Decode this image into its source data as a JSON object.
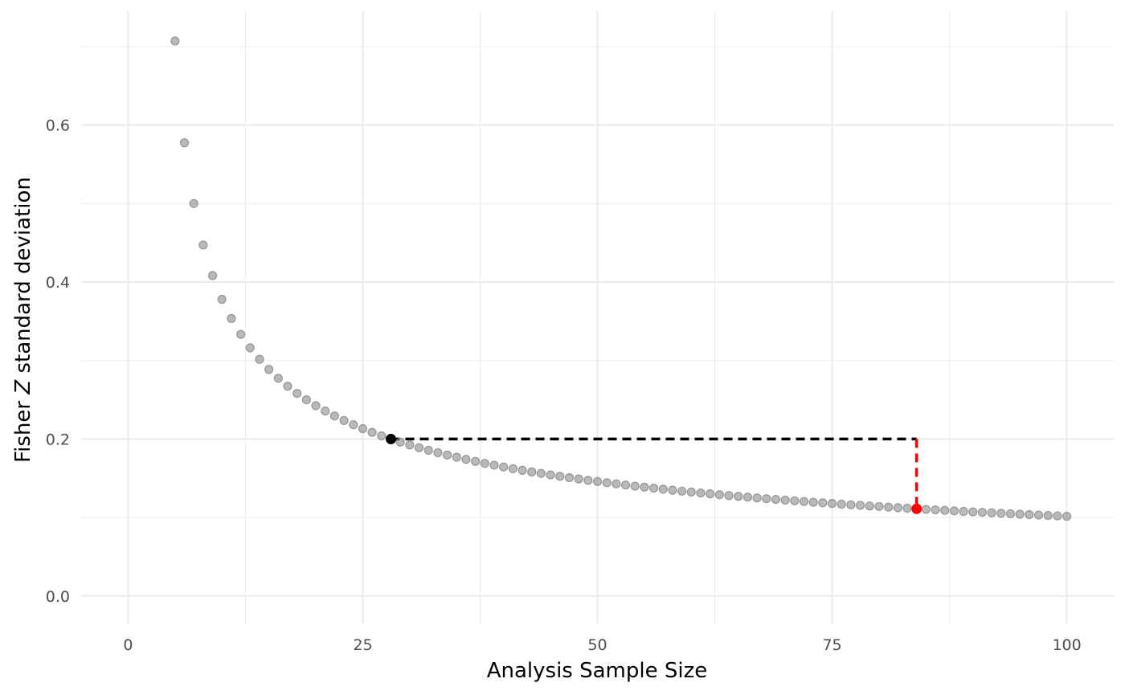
{
  "chart_data": {
    "type": "scatter",
    "title": "",
    "xlabel": "Analysis Sample Size",
    "ylabel_prefix": "Fisher ",
    "ylabel_var": "Z",
    "ylabel_suffix": " standard deviation",
    "xlim": [
      -5,
      105
    ],
    "ylim": [
      -0.035,
      0.745
    ],
    "x_ticks": [
      0,
      25,
      50,
      75,
      100
    ],
    "x_tick_labels": [
      "0",
      "25",
      "50",
      "75",
      "100"
    ],
    "x_minor_ticks": [
      12.5,
      37.5,
      62.5,
      87.5
    ],
    "y_ticks": [
      0.0,
      0.2,
      0.4,
      0.6
    ],
    "y_tick_labels": [
      "0.0",
      "0.2",
      "0.4",
      "0.6"
    ],
    "y_minor_ticks": [
      0.1,
      0.3,
      0.5,
      0.7
    ],
    "grid": true,
    "legend": "none",
    "series": [
      {
        "x": [
          5,
          6,
          7,
          8,
          9,
          10,
          11,
          12,
          13,
          14,
          15,
          16,
          17,
          18,
          19,
          20,
          21,
          22,
          23,
          24,
          25,
          26,
          27,
          28,
          29,
          30,
          31,
          32,
          33,
          34,
          35,
          36,
          37,
          38,
          39,
          40,
          41,
          42,
          43,
          44,
          45,
          46,
          47,
          48,
          49,
          50,
          51,
          52,
          53,
          54,
          55,
          56,
          57,
          58,
          59,
          60,
          61,
          62,
          63,
          64,
          65,
          66,
          67,
          68,
          69,
          70,
          71,
          72,
          73,
          74,
          75,
          76,
          77,
          78,
          79,
          80,
          81,
          82,
          83,
          84,
          85,
          86,
          87,
          88,
          89,
          90,
          91,
          92,
          93,
          94,
          95,
          96,
          97,
          98,
          99,
          100
        ],
        "y": [
          0.7071,
          0.5774,
          0.5,
          0.4472,
          0.4082,
          0.378,
          0.3536,
          0.3333,
          0.3162,
          0.3015,
          0.2887,
          0.2774,
          0.2673,
          0.2582,
          0.25,
          0.2425,
          0.2357,
          0.2294,
          0.2236,
          0.2182,
          0.2132,
          0.2085,
          0.2041,
          0.2,
          0.1961,
          0.1925,
          0.189,
          0.1857,
          0.1826,
          0.1796,
          0.1768,
          0.1741,
          0.1715,
          0.169,
          0.1667,
          0.1644,
          0.1622,
          0.1601,
          0.1581,
          0.1562,
          0.1543,
          0.1525,
          0.1508,
          0.1491,
          0.1474,
          0.1459,
          0.1443,
          0.1429,
          0.1414,
          0.14,
          0.1387,
          0.1374,
          0.1361,
          0.1348,
          0.1336,
          0.1325,
          0.1313,
          0.1302,
          0.1291,
          0.128,
          0.127,
          0.126,
          0.125,
          0.124,
          0.1231,
          0.1222,
          0.1213,
          0.1204,
          0.1195,
          0.1187,
          0.1179,
          0.117,
          0.1162,
          0.1155,
          0.1147,
          0.114,
          0.1132,
          0.1125,
          0.1118,
          0.1111,
          0.1104,
          0.1098,
          0.1091,
          0.1085,
          0.1078,
          0.1072,
          0.1066,
          0.106,
          0.1054,
          0.1048,
          0.1043,
          0.1037,
          0.1031,
          0.1026,
          0.1021,
          0.1015
        ],
        "color": "#7f7f7f"
      }
    ],
    "highlight_points": [
      {
        "x": 28,
        "y": 0.2,
        "color": "#000000"
      },
      {
        "x": 84,
        "y": 0.1111,
        "color": "#ff0000"
      }
    ],
    "reference_lines": [
      {
        "x1": 28,
        "y1": 0.2,
        "x2": 84,
        "y2": 0.2,
        "color": "#000000",
        "style": "dashed"
      },
      {
        "x1": 84,
        "y1": 0.2,
        "x2": 84,
        "y2": 0.1111,
        "color": "#ff0000",
        "style": "dashed"
      }
    ]
  }
}
